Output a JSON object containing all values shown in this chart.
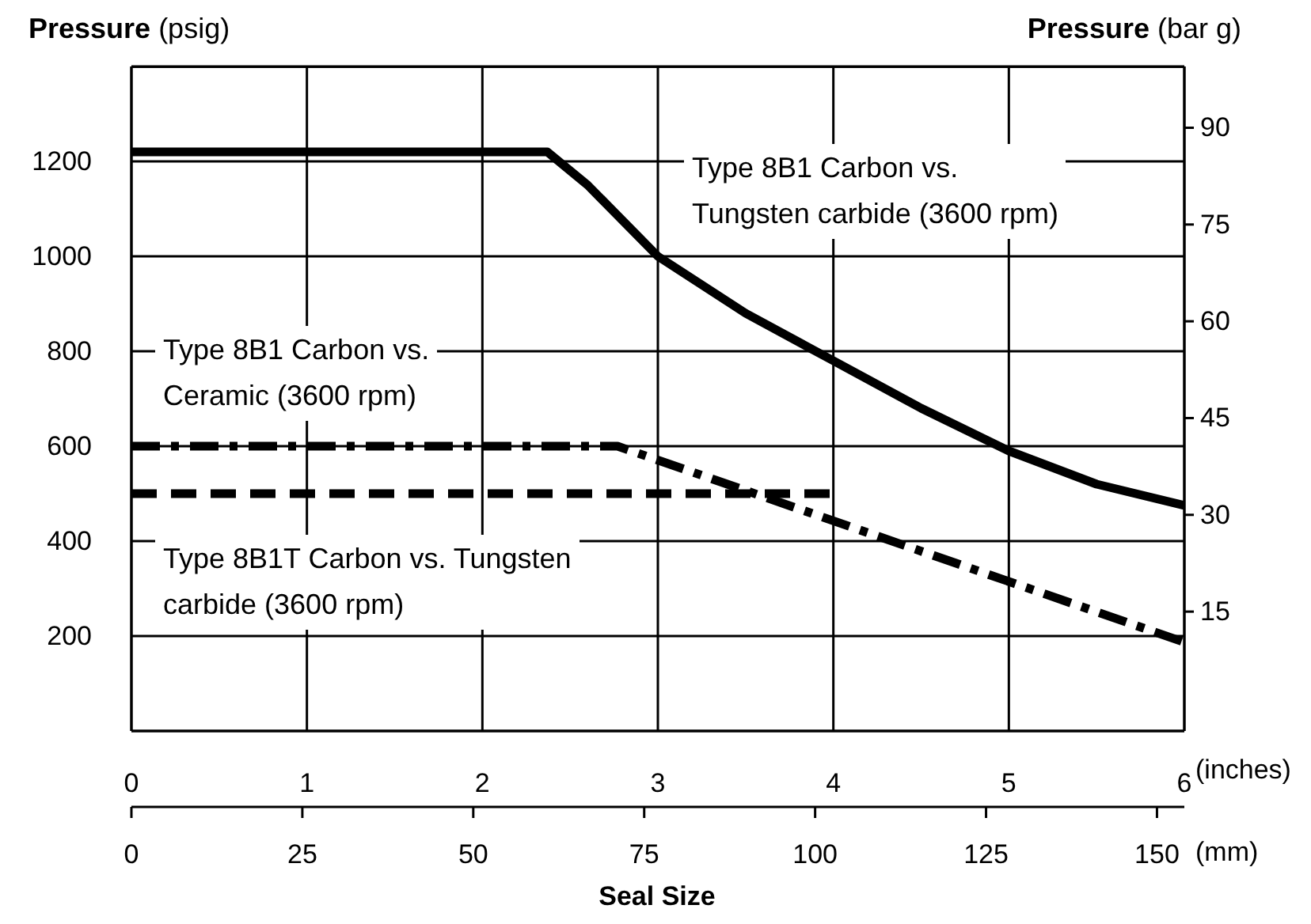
{
  "chart_data": {
    "type": "line",
    "ylabel": "Pressure (psig)",
    "y2label": "Pressure (bar g)",
    "xlabel": "Seal Size",
    "x2label": "(mm)",
    "annotations": [
      "(inches)"
    ],
    "xlim": [
      0,
      6
    ],
    "xticks": [
      0,
      1,
      2,
      3,
      4,
      5,
      6
    ],
    "x2lim": [
      0,
      154
    ],
    "x2ticks": [
      0,
      25,
      50,
      75,
      100,
      125,
      150
    ],
    "ylim": [
      0,
      1400
    ],
    "yticks": [
      200,
      400,
      600,
      800,
      1000,
      1200
    ],
    "y2lim": [
      -3.5,
      99.5
    ],
    "y2ticks": [
      15,
      30,
      45,
      60,
      75,
      90
    ],
    "grid": true,
    "marker": "none",
    "series": [
      {
        "name": "Type 8B1 Carbon vs.\nTungsten carbide (3600 rpm)",
        "color": "#000000",
        "line_style": "solid",
        "x": [
          0,
          2.37,
          2.6,
          3.0,
          3.5,
          4.0,
          4.5,
          5.0,
          5.5,
          6.0
        ],
        "values": [
          1220,
          1220,
          1150,
          1000,
          880,
          780,
          680,
          590,
          520,
          475
        ]
      },
      {
        "name": "Type 8B1 Carbon vs.\nCeramic (3600 rpm)",
        "color": "#000000",
        "line_style": "dashdot",
        "x": [
          0,
          2.77,
          6.0
        ],
        "values": [
          600,
          600,
          187
        ]
      },
      {
        "name": "Type 8B1T Carbon vs. Tungsten\ncarbide (3600 rpm)",
        "color": "#000000",
        "line_style": "dashed",
        "x": [
          0,
          4.0
        ],
        "values": [
          500,
          500
        ]
      }
    ]
  }
}
